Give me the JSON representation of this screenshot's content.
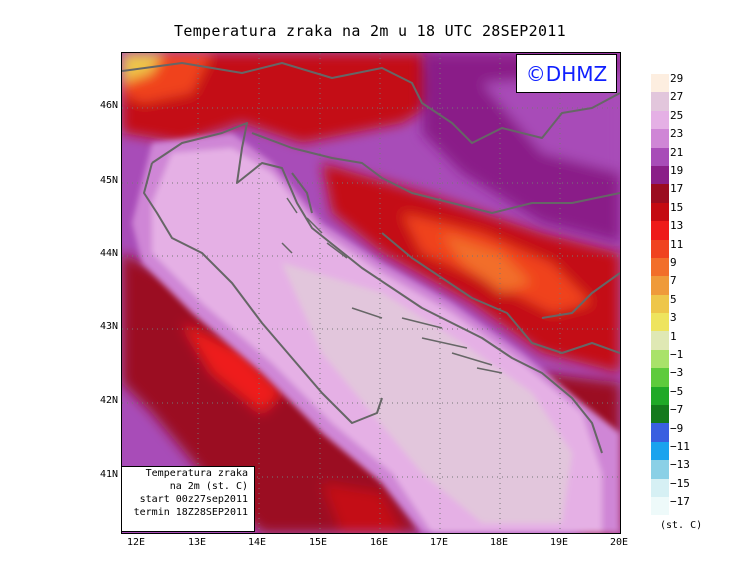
{
  "title": "Temperatura zraka na 2m u 18 UTC 28SEP2011",
  "logo": "©DHMZ",
  "lat_labels": [
    "46N",
    "45N",
    "44N",
    "43N",
    "42N",
    "41N"
  ],
  "lon_labels": [
    "12E",
    "13E",
    "14E",
    "15E",
    "16E",
    "17E",
    "18E",
    "19E",
    "20E"
  ],
  "info": {
    "line1": "Temperatura zraka",
    "line2": "na 2m (st. C)",
    "line3": "start 00z27sep2011",
    "line4": "termin 18Z28SEP2011"
  },
  "legend": {
    "unit": "(st. C)",
    "labels": [
      "29",
      "27",
      "25",
      "23",
      "21",
      "19",
      "17",
      "15",
      "13",
      "11",
      "9",
      "7",
      "5",
      "3",
      "1",
      "−1",
      "−3",
      "−5",
      "−7",
      "−9",
      "−11",
      "−13",
      "−15",
      "−17"
    ],
    "colors": [
      "#fdeee0",
      "#e2c6dc",
      "#e5b0e5",
      "#cf86d6",
      "#a84cb8",
      "#8a1e88",
      "#9b0c20",
      "#c40a12",
      "#ee1a1a",
      "#f0431f",
      "#f26e2a",
      "#ef9a3a",
      "#eec64a",
      "#eee45e",
      "#dfe8b4",
      "#a9e26a",
      "#5ecb3c",
      "#1fa927",
      "#147a1c",
      "#3a5fe0",
      "#1ba3ee",
      "#8ad0e6",
      "#d6f0f4",
      "#eefafa"
    ]
  }
}
